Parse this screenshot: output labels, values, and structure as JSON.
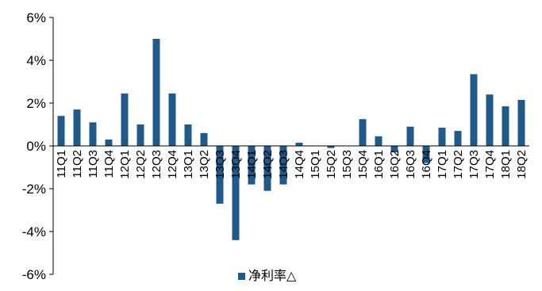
{
  "chart_data": {
    "type": "bar",
    "title": "",
    "xlabel": "",
    "ylabel": "",
    "ylim": [
      -6,
      6
    ],
    "yticks": [
      -6,
      -4,
      -2,
      0,
      2,
      4,
      6
    ],
    "ytick_labels": [
      "-6%",
      "-4%",
      "-2%",
      "0%",
      "2%",
      "4%",
      "6%"
    ],
    "grid": false,
    "legend_position": "bottom",
    "bar_color": "#1f5a8a",
    "categories": [
      "11Q1",
      "11Q2",
      "11Q3",
      "11Q4",
      "12Q1",
      "12Q2",
      "12Q3",
      "12Q4",
      "13Q1",
      "13Q2",
      "13Q3",
      "13Q4",
      "14Q1",
      "14Q2",
      "14Q3",
      "14Q4",
      "15Q1",
      "15Q2",
      "15Q3",
      "15Q4",
      "16Q1",
      "16Q2",
      "16Q3",
      "16Q4",
      "17Q1",
      "17Q2",
      "17Q3",
      "17Q4",
      "18Q1",
      "18Q2"
    ],
    "series": [
      {
        "name": "净利率△",
        "values": [
          1.4,
          1.7,
          1.1,
          0.3,
          2.45,
          1.0,
          5.0,
          2.45,
          1.0,
          0.6,
          -2.7,
          -4.4,
          -1.8,
          -2.1,
          -1.8,
          0.15,
          0.0,
          -0.1,
          0.0,
          1.25,
          0.45,
          -0.3,
          0.9,
          -0.8,
          0.85,
          0.7,
          3.35,
          2.4,
          1.85,
          2.15
        ]
      }
    ]
  }
}
